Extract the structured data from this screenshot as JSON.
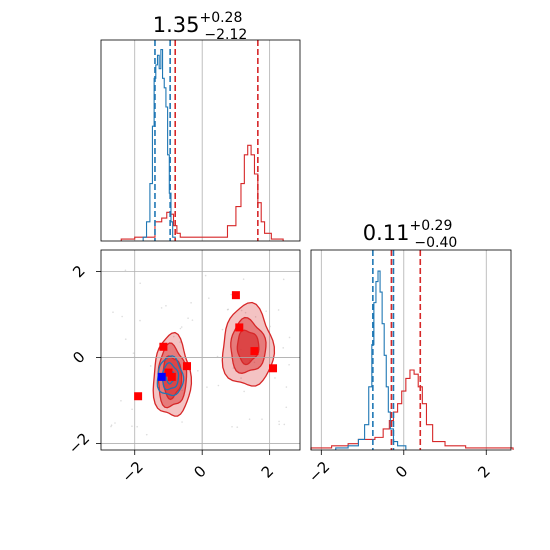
{
  "chart_data": {
    "type": "corner",
    "colors": {
      "series_a": "#1f77b4",
      "series_b": "#d62728",
      "markers": "#ff0000",
      "highlight": "#0000ff",
      "grid": "#b0b0b0"
    },
    "titles": [
      {
        "parameter": "p1",
        "value": "1.35",
        "plus": "+0.28",
        "minus": "−2.12"
      },
      {
        "parameter": "p2",
        "value": "0.11",
        "plus": "+0.29",
        "minus": "−0.40"
      }
    ],
    "p1_axis": {
      "range": [
        -3,
        2.9
      ],
      "ticks": [
        -2,
        0,
        2
      ],
      "tick_labels": [
        "−2",
        "0",
        "2"
      ]
    },
    "p2_axis": {
      "range": [
        -2.15,
        2.5
      ],
      "ticks": [
        -2,
        0,
        2
      ],
      "tick_labels": [
        "−2",
        "0",
        "2"
      ]
    },
    "p2_hist_axis": {
      "range": [
        -2.25,
        2.6
      ],
      "ticks": [
        -2,
        0,
        2
      ],
      "tick_labels": [
        "−2",
        "0",
        "2"
      ]
    },
    "hist_p1": {
      "series_a": {
        "x": [
          -1.7,
          -1.6,
          -1.5,
          -1.45,
          -1.4,
          -1.35,
          -1.3,
          -1.25,
          -1.2,
          -1.15,
          -1.1,
          -1.05,
          -1.0,
          -0.95,
          -0.9,
          -0.85
        ],
        "y": [
          0.02,
          0.1,
          0.3,
          0.6,
          0.85,
          0.92,
          0.97,
          0.9,
          1.0,
          0.85,
          0.8,
          0.7,
          0.45,
          0.25,
          0.1,
          0.02
        ]
      },
      "series_b": {
        "x": [
          -2.2,
          -1.8,
          -1.5,
          -1.3,
          -1.1,
          -1.0,
          -0.9,
          -0.8,
          -0.7,
          -0.6,
          0.0,
          0.6,
          0.9,
          1.1,
          1.2,
          1.3,
          1.4,
          1.5,
          1.6,
          1.7,
          1.8,
          1.9,
          2.2
        ],
        "y": [
          0.01,
          0.02,
          0.02,
          0.1,
          0.12,
          0.15,
          0.14,
          0.08,
          0.04,
          0.02,
          0.02,
          0.02,
          0.08,
          0.18,
          0.3,
          0.45,
          0.5,
          0.45,
          0.35,
          0.2,
          0.1,
          0.04,
          0.01
        ]
      },
      "vlines_a": [
        -1.4,
        -0.95
      ],
      "vlines_b": [
        -0.8,
        1.65
      ]
    },
    "hist_p2": {
      "series_a": {
        "x": [
          -1.5,
          -1.2,
          -1.0,
          -0.9,
          -0.8,
          -0.75,
          -0.7,
          -0.65,
          -0.6,
          -0.55,
          -0.5,
          -0.45,
          -0.4,
          -0.35,
          -0.3,
          -0.2,
          -0.1
        ],
        "y": [
          0.01,
          0.02,
          0.05,
          0.12,
          0.3,
          0.5,
          0.7,
          0.8,
          0.85,
          0.75,
          0.6,
          0.45,
          0.3,
          0.18,
          0.1,
          0.04,
          0.02
        ]
      },
      "series_b": {
        "x": [
          -2.0,
          -1.5,
          -1.2,
          -1.0,
          -0.8,
          -0.6,
          -0.4,
          -0.3,
          -0.2,
          -0.1,
          0.0,
          0.1,
          0.2,
          0.3,
          0.4,
          0.5,
          0.6,
          0.8,
          1.2,
          1.8,
          2.4
        ],
        "y": [
          0.01,
          0.02,
          0.03,
          0.05,
          0.05,
          0.06,
          0.1,
          0.14,
          0.18,
          0.22,
          0.28,
          0.34,
          0.38,
          0.36,
          0.3,
          0.22,
          0.12,
          0.04,
          0.02,
          0.01,
          0.01
        ]
      },
      "vlines_a": [
        -0.75,
        -0.25
      ],
      "vlines_b": [
        -0.3,
        0.4
      ]
    },
    "joint": {
      "reference_lines": {
        "p1": 0,
        "p2": 0
      },
      "blob_b_left": {
        "center": [
          -0.9,
          -0.45
        ],
        "levels": [
          [
            0.55,
            0.95
          ],
          [
            0.42,
            0.72
          ],
          [
            0.28,
            0.48
          ]
        ]
      },
      "blob_b_right": {
        "center": [
          1.35,
          0.25
        ],
        "levels": [
          [
            0.75,
            0.95
          ],
          [
            0.52,
            0.62
          ],
          [
            0.32,
            0.38
          ]
        ]
      },
      "blob_a": {
        "center": [
          -0.95,
          -0.45
        ],
        "levels": [
          [
            0.38,
            0.45
          ],
          [
            0.24,
            0.3
          ],
          [
            0.12,
            0.15
          ]
        ]
      },
      "markers": [
        {
          "p1": -1.15,
          "p2": 0.25
        },
        {
          "p1": -1.0,
          "p2": -0.35
        },
        {
          "p1": -0.9,
          "p2": -0.45
        },
        {
          "p1": -0.45,
          "p2": -0.2
        },
        {
          "p1": -1.9,
          "p2": -0.9
        },
        {
          "p1": 1.0,
          "p2": 1.45
        },
        {
          "p1": 1.1,
          "p2": 0.7
        },
        {
          "p1": 1.55,
          "p2": 0.15
        },
        {
          "p1": 2.1,
          "p2": -0.25
        }
      ],
      "highlight": {
        "p1": -1.2,
        "p2": -0.45
      }
    }
  }
}
